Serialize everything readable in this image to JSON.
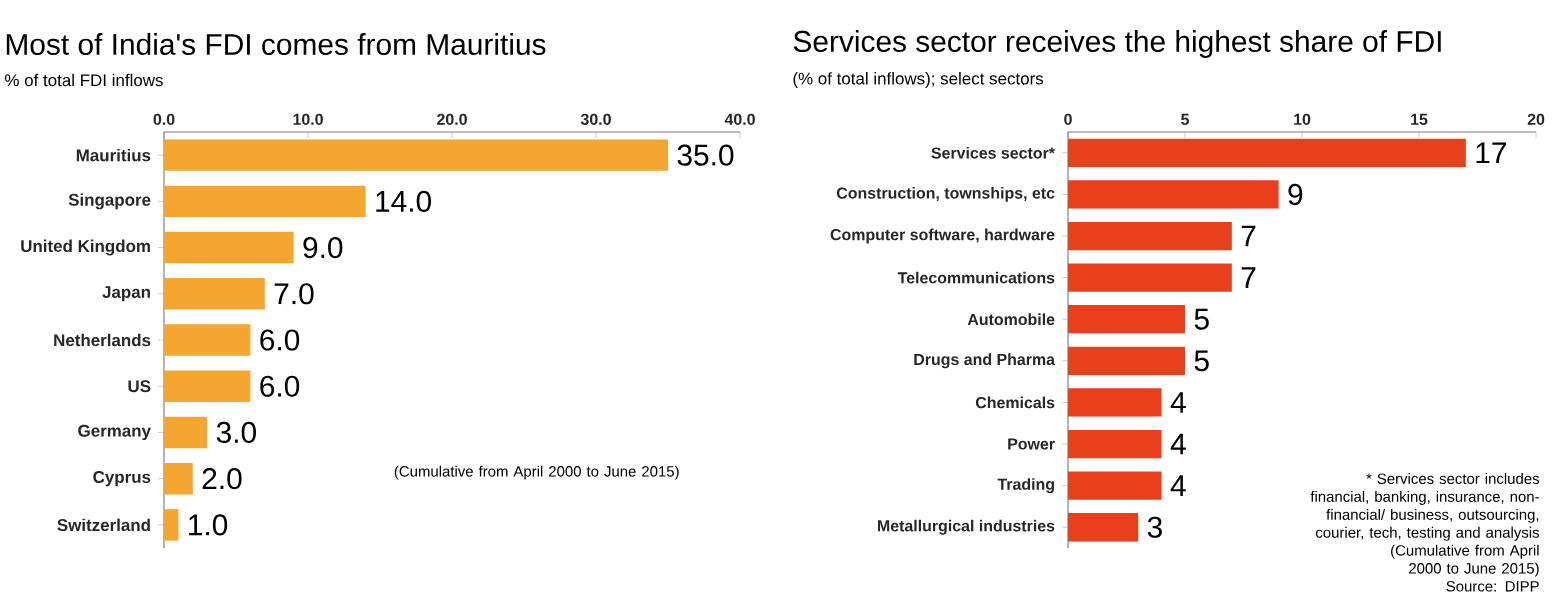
{
  "chart_data": [
    {
      "type": "bar",
      "orientation": "horizontal",
      "title": "Most of India's FDI comes from Mauritius",
      "subtitle": "% of total FDI inflows",
      "categories": [
        "Mauritius",
        "Singapore",
        "United Kingdom",
        "Japan",
        "Netherlands",
        "US",
        "Germany",
        "Cyprus",
        "Switzerland"
      ],
      "values": [
        35.0,
        14.0,
        9.0,
        7.0,
        6.0,
        6.0,
        3.0,
        2.0,
        1.0
      ],
      "value_labels": [
        "35.0",
        "14.0",
        "9.0",
        "7.0",
        "6.0",
        "6.0",
        "3.0",
        "2.0",
        "1.0"
      ],
      "color": "#f4a631",
      "xlim": [
        0,
        40
      ],
      "xticks": [
        {
          "value": 0,
          "label": "0.0"
        },
        {
          "value": 10,
          "label": "10.0"
        },
        {
          "value": 20,
          "label": "20.0"
        },
        {
          "value": 30,
          "label": "30.0"
        },
        {
          "value": 40,
          "label": "40.0"
        }
      ],
      "annotations": [
        "(Cumulative from April 2000 to June 2015)"
      ]
    },
    {
      "type": "bar",
      "orientation": "horizontal",
      "title": "Services sector receives the highest share of FDI",
      "subtitle": "(% of total inflows); select sectors",
      "categories": [
        "Services sector*",
        "Construction, townships, etc",
        "Computer software, hardware",
        "Telecommunications",
        "Automobile",
        "Drugs and Pharma",
        "Chemicals",
        "Power",
        "Trading",
        "Metallurgical industries"
      ],
      "values": [
        17,
        9,
        7,
        7,
        5,
        5,
        4,
        4,
        4,
        3
      ],
      "data_labels": true,
      "color": "#e8401c",
      "xlim": [
        0,
        20
      ],
      "xticks": [
        0,
        5,
        10,
        15,
        20
      ],
      "annotations": [
        "* Services sector includes financial, banking, insurance, non-financial/ business, outsourcing, courier, tech, testing and analysis",
        "(Cumulative from April 2000 to June 2015)",
        "Source: DIPP"
      ]
    }
  ]
}
